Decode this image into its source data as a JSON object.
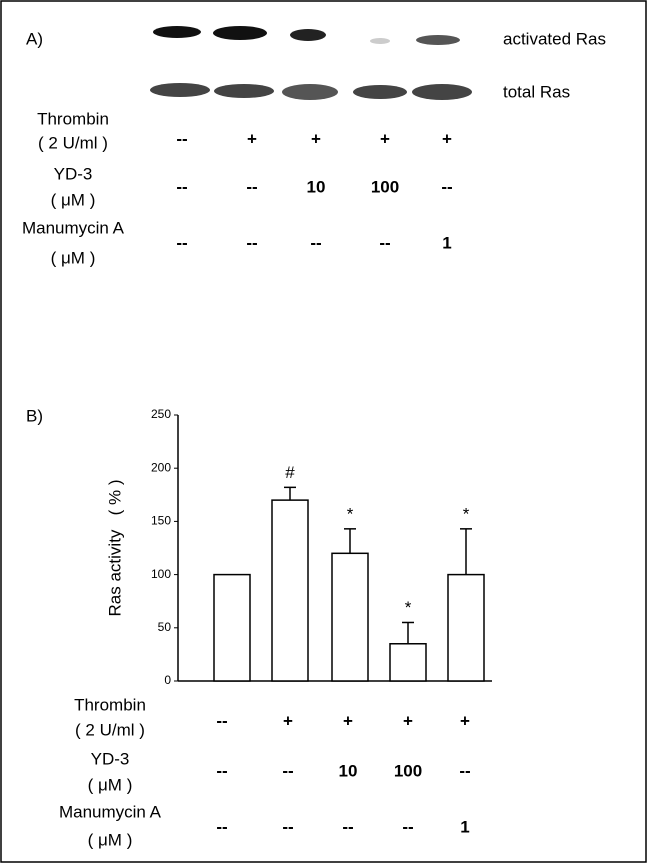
{
  "panel_a": {
    "label": "A)",
    "bands": [
      "activated Ras",
      "total Ras"
    ],
    "conditions": [
      {
        "label": "Thrombin",
        "unit": "( 2 U/ml )",
        "cells": [
          "--",
          "+",
          "+",
          "+",
          "+"
        ]
      },
      {
        "label": "YD-3",
        "unit": "( μM )",
        "cells": [
          "--",
          "--",
          "10",
          "100",
          "--"
        ]
      },
      {
        "label": "Manumycin A",
        "unit": "( μM )",
        "cells": [
          "--",
          "--",
          "--",
          "--",
          "1"
        ]
      }
    ]
  },
  "chart_data": {
    "type": "bar",
    "panel_label": "B)",
    "y_label": "Ras activity   ( % )",
    "categories": [
      null,
      null,
      null,
      null,
      null
    ],
    "values": [
      100,
      170,
      120,
      35,
      100
    ],
    "errors": [
      null,
      12,
      23,
      20,
      43
    ],
    "annotations": [
      null,
      "#",
      "*",
      "*",
      "*"
    ],
    "color": "#ffffff",
    "ylim": [
      0,
      250
    ],
    "yticks": [
      0,
      50,
      100,
      150,
      200,
      250
    ],
    "conditions": [
      {
        "label": "Thrombin",
        "unit": "( 2 U/ml )",
        "cells": [
          "--",
          "+",
          "+",
          "+",
          "+"
        ]
      },
      {
        "label": "YD-3",
        "unit": "( μM )",
        "cells": [
          "--",
          "--",
          "10",
          "100",
          "--"
        ]
      },
      {
        "label": "Manumycin A",
        "unit": "( μM )",
        "cells": [
          "--",
          "--",
          "--",
          "--",
          "1"
        ]
      }
    ]
  }
}
